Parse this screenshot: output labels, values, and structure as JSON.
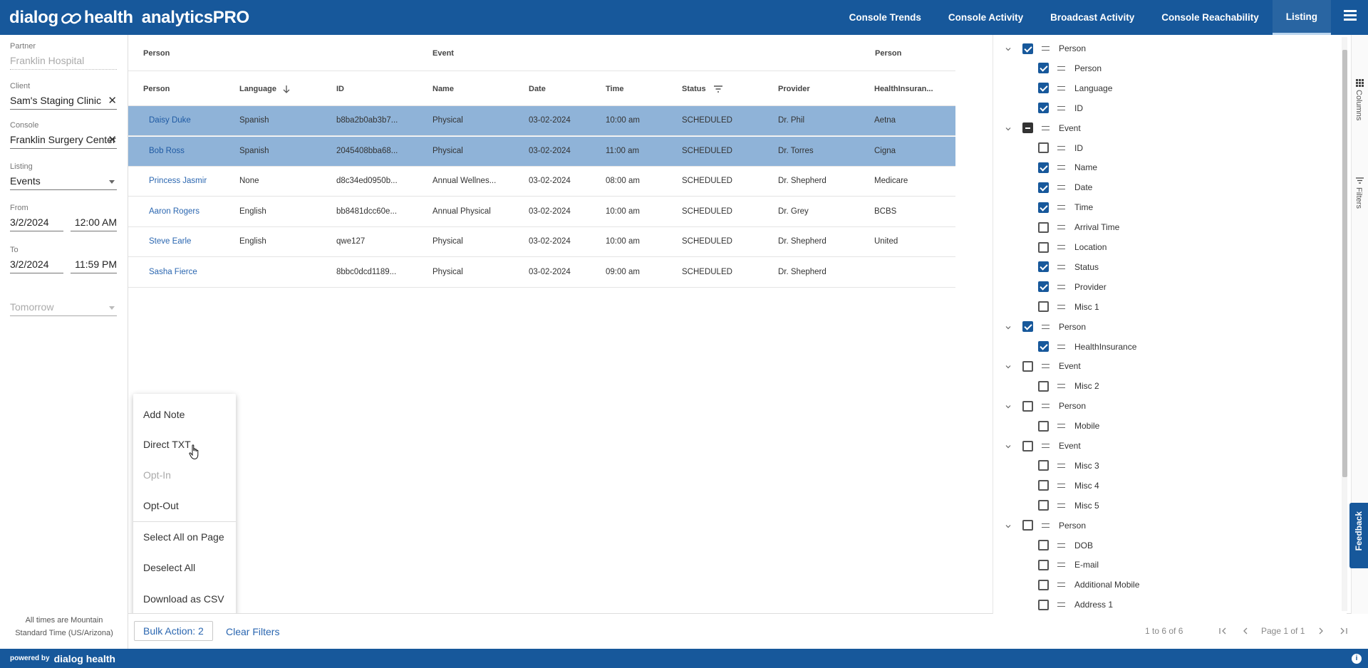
{
  "header": {
    "brand_left": "dialog",
    "brand_right": "health",
    "app_name": "analyticsPRO",
    "nav": [
      "Console Trends",
      "Console Activity",
      "Broadcast Activity",
      "Console Reachability",
      "Listing"
    ],
    "active_nav": "Listing"
  },
  "filters": {
    "partner_label": "Partner",
    "partner_value": "Franklin Hospital",
    "client_label": "Client",
    "client_value": "Sam's Staging Clinic",
    "console_label": "Console",
    "console_value": "Franklin Surgery Center",
    "listing_label": "Listing",
    "listing_value": "Events",
    "from_label": "From",
    "from_date": "3/2/2024",
    "from_time": "12:00 AM",
    "to_label": "To",
    "to_date": "3/2/2024",
    "to_time": "11:59 PM",
    "preset_value": "Tomorrow",
    "timezone_note": "All times are Mountain Standard Time (US/Arizona)"
  },
  "table": {
    "groups": [
      "Person",
      "Event",
      "Person"
    ],
    "columns": [
      "Person",
      "Language",
      "ID",
      "Name",
      "Date",
      "Time",
      "Status",
      "Provider",
      "HealthInsuran..."
    ],
    "rows": [
      {
        "person": "Daisy Duke",
        "language": "Spanish",
        "id": "b8ba2b0ab3b7...",
        "name": "Physical",
        "date": "03-02-2024",
        "time": "10:00 am",
        "status": "SCHEDULED",
        "provider": "Dr. Phil",
        "insurance": "Aetna",
        "selected": true
      },
      {
        "person": "Bob Ross",
        "language": "Spanish",
        "id": "2045408bba68...",
        "name": "Physical",
        "date": "03-02-2024",
        "time": "11:00 am",
        "status": "SCHEDULED",
        "provider": "Dr. Torres",
        "insurance": "Cigna",
        "selected": true
      },
      {
        "person": "Princess Jasmir",
        "language": "None",
        "id": "d8c34ed0950b...",
        "name": "Annual Wellnes...",
        "date": "03-02-2024",
        "time": "08:00 am",
        "status": "SCHEDULED",
        "provider": "Dr. Shepherd",
        "insurance": "Medicare",
        "selected": false
      },
      {
        "person": "Aaron Rogers",
        "language": "English",
        "id": "bb8481dcc60e...",
        "name": "Annual Physical",
        "date": "03-02-2024",
        "time": "10:00 am",
        "status": "SCHEDULED",
        "provider": "Dr. Grey",
        "insurance": "BCBS",
        "selected": false
      },
      {
        "person": "Steve Earle",
        "language": "English",
        "id": "qwe127",
        "name": "Physical",
        "date": "03-02-2024",
        "time": "10:00 am",
        "status": "SCHEDULED",
        "provider": "Dr. Shepherd",
        "insurance": "United",
        "selected": false
      },
      {
        "person": "Sasha Fierce",
        "language": "",
        "id": "8bbc0dcd1189...",
        "name": "Physical",
        "date": "03-02-2024",
        "time": "09:00 am",
        "status": "SCHEDULED",
        "provider": "Dr. Shepherd",
        "insurance": "",
        "selected": false
      }
    ]
  },
  "context_menu": {
    "items": [
      "Add Note",
      "Direct TXT",
      "Opt-In",
      "Opt-Out",
      "Select All on Page",
      "Deselect All",
      "Download as CSV"
    ],
    "disabled": [
      "Opt-In"
    ]
  },
  "bottom": {
    "bulk_action": "Bulk Action: 2",
    "clear_filters": "Clear Filters",
    "range": "1 to 6 of 6",
    "page": "Page 1 of 1"
  },
  "footer": {
    "powered_by": "powered by",
    "brand": "dialog health"
  },
  "column_panel": {
    "items": [
      {
        "label": "Person",
        "level": 0,
        "state": "on"
      },
      {
        "label": "Person",
        "level": 1,
        "state": "on"
      },
      {
        "label": "Language",
        "level": 1,
        "state": "on"
      },
      {
        "label": "ID",
        "level": 1,
        "state": "on"
      },
      {
        "label": "Event",
        "level": 0,
        "state": "ind"
      },
      {
        "label": "ID",
        "level": 1,
        "state": "off"
      },
      {
        "label": "Name",
        "level": 1,
        "state": "on"
      },
      {
        "label": "Date",
        "level": 1,
        "state": "on"
      },
      {
        "label": "Time",
        "level": 1,
        "state": "on"
      },
      {
        "label": "Arrival Time",
        "level": 1,
        "state": "off"
      },
      {
        "label": "Location",
        "level": 1,
        "state": "off"
      },
      {
        "label": "Status",
        "level": 1,
        "state": "on"
      },
      {
        "label": "Provider",
        "level": 1,
        "state": "on"
      },
      {
        "label": "Misc 1",
        "level": 1,
        "state": "off"
      },
      {
        "label": "Person",
        "level": 0,
        "state": "on"
      },
      {
        "label": "HealthInsurance",
        "level": 1,
        "state": "on"
      },
      {
        "label": "Event",
        "level": 0,
        "state": "off"
      },
      {
        "label": "Misc 2",
        "level": 1,
        "state": "off"
      },
      {
        "label": "Person",
        "level": 0,
        "state": "off"
      },
      {
        "label": "Mobile",
        "level": 1,
        "state": "off"
      },
      {
        "label": "Event",
        "level": 0,
        "state": "off"
      },
      {
        "label": "Misc 3",
        "level": 1,
        "state": "off"
      },
      {
        "label": "Misc 4",
        "level": 1,
        "state": "off"
      },
      {
        "label": "Misc 5",
        "level": 1,
        "state": "off"
      },
      {
        "label": "Person",
        "level": 0,
        "state": "off"
      },
      {
        "label": "DOB",
        "level": 1,
        "state": "off"
      },
      {
        "label": "E-mail",
        "level": 1,
        "state": "off"
      },
      {
        "label": "Additional Mobile",
        "level": 1,
        "state": "off"
      },
      {
        "label": "Address 1",
        "level": 1,
        "state": "off"
      }
    ],
    "side_tabs": [
      "Columns",
      "Filters"
    ],
    "feedback": "Feedback"
  },
  "colors": {
    "brand": "#17589b",
    "selected_row": "#8fb3d8",
    "link": "#2a66b0"
  }
}
